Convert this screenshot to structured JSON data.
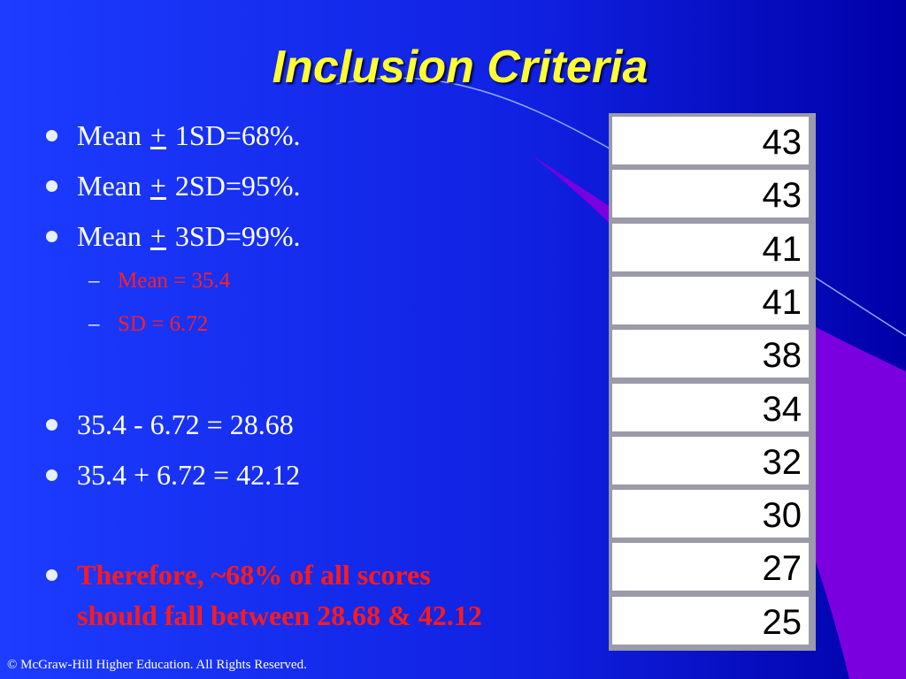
{
  "header": {
    "title": "Inclusion Criteria"
  },
  "bullets": [
    {
      "before": "Mean",
      "symbol": "+",
      "after": "1SD=68%."
    },
    {
      "before": "Mean",
      "symbol": "+",
      "after": "2SD=95%."
    },
    {
      "before": "Mean",
      "symbol": "+",
      "after": "3SD=99%."
    }
  ],
  "sub_bullets": [
    "Mean = 35.4",
    "SD = 6.72"
  ],
  "calculations": [
    "35.4 - 6.72 = 28.68",
    "35.4 + 6.72 = 42.12"
  ],
  "conclusion": [
    "Therefore, ~68% of all scores",
    "should fall between 28.68 & 42.12"
  ],
  "table": {
    "rows": [
      43,
      43,
      41,
      41,
      38,
      34,
      32,
      30,
      27,
      25
    ]
  },
  "footer": "© McGraw-Hill Higher Education. All Rights Reserved."
}
